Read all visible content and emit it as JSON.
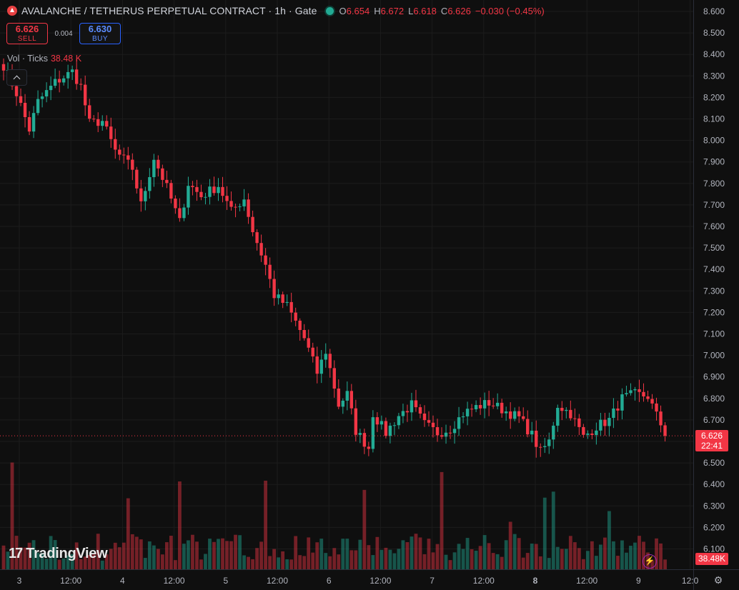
{
  "header": {
    "title": "AVALANCHE / TETHERUS PERPETUAL CONTRACT · 1h · Gate",
    "open_label": "O",
    "open": "6.654",
    "high_label": "H",
    "high": "6.672",
    "low_label": "L",
    "low": "6.618",
    "close_label": "C",
    "close": "6.626",
    "change": "−0.030 (−0.45%)"
  },
  "trade": {
    "sell_price": "6.626",
    "sell_label": "SELL",
    "spread": "0.004",
    "buy_price": "6.630",
    "buy_label": "BUY"
  },
  "volume": {
    "label": "Vol · Ticks",
    "value": "38.48 K"
  },
  "price_tag": {
    "price": "6.626",
    "countdown": "22:41"
  },
  "volume_tag": "38.48K",
  "logo_text": "TradingView",
  "colors": {
    "up": "#22ab94",
    "down": "#f23645",
    "background": "#0f0f0f"
  },
  "icons": [
    "avalanche-logo-icon",
    "market-status-icon",
    "collapse-icon",
    "lightning-icon",
    "settings-icon",
    "tradingview-logo-icon"
  ],
  "chart_data": {
    "type": "candlestick",
    "y_ticks": [
      "8.600",
      "8.500",
      "8.400",
      "8.300",
      "8.200",
      "8.100",
      "8.000",
      "7.900",
      "7.800",
      "7.700",
      "7.600",
      "7.500",
      "7.400",
      "7.300",
      "7.200",
      "7.100",
      "7.000",
      "6.900",
      "6.800",
      "6.700",
      "6.600",
      "6.500",
      "6.400",
      "6.300",
      "6.200",
      "6.100"
    ],
    "x_ticks": [
      "3",
      "12:00",
      "4",
      "12:00",
      "5",
      "12:00",
      "6",
      "12:00",
      "7",
      "12:00",
      "8",
      "12:00",
      "9",
      "12:0"
    ],
    "ylim": [
      6.06,
      8.62
    ],
    "grid": true,
    "last_price": 6.626,
    "series": [
      {
        "name": "Price",
        "anchors": [
          [
            0,
            8.35
          ],
          [
            3,
            8.22
          ],
          [
            6,
            8.05
          ],
          [
            8,
            8.18
          ],
          [
            12,
            8.27
          ],
          [
            16,
            8.32
          ],
          [
            18,
            8.25
          ],
          [
            20,
            8.08
          ],
          [
            23,
            8.09
          ],
          [
            26,
            7.95
          ],
          [
            30,
            7.87
          ],
          [
            32,
            7.7
          ],
          [
            35,
            7.92
          ],
          [
            38,
            7.78
          ],
          [
            41,
            7.62
          ],
          [
            43,
            7.8
          ],
          [
            46,
            7.74
          ],
          [
            50,
            7.79
          ],
          [
            53,
            7.67
          ],
          [
            56,
            7.73
          ],
          [
            58,
            7.58
          ],
          [
            61,
            7.42
          ],
          [
            63,
            7.28
          ],
          [
            66,
            7.23
          ],
          [
            70,
            7.08
          ],
          [
            73,
            6.92
          ],
          [
            75,
            7.02
          ],
          [
            78,
            6.77
          ],
          [
            80,
            6.82
          ],
          [
            82,
            6.65
          ],
          [
            85,
            6.57
          ],
          [
            86,
            6.73
          ],
          [
            89,
            6.64
          ],
          [
            92,
            6.72
          ],
          [
            95,
            6.77
          ],
          [
            98,
            6.68
          ],
          [
            101,
            6.64
          ],
          [
            104,
            6.66
          ],
          [
            107,
            6.73
          ],
          [
            110,
            6.76
          ],
          [
            113,
            6.78
          ],
          [
            117,
            6.74
          ],
          [
            120,
            6.71
          ],
          [
            123,
            6.63
          ],
          [
            125,
            6.55
          ],
          [
            127,
            6.6
          ],
          [
            129,
            6.77
          ],
          [
            132,
            6.73
          ],
          [
            135,
            6.62
          ],
          [
            138,
            6.67
          ],
          [
            141,
            6.7
          ],
          [
            144,
            6.8
          ],
          [
            147,
            6.82
          ],
          [
            150,
            6.81
          ],
          [
            152,
            6.72
          ],
          [
            154,
            6.64
          ]
        ]
      }
    ],
    "volume_series": {
      "name": "Vol · Ticks",
      "last": "38.48K"
    }
  }
}
